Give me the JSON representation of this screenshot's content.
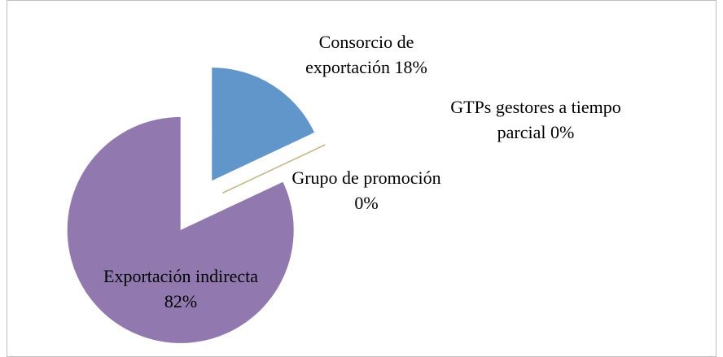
{
  "chart_data": {
    "type": "pie",
    "categories": [
      "Consorcio de exportación",
      "GTPs gestores a tiempo parcial",
      "Grupo de promoción",
      "Exportación indirecta"
    ],
    "values": [
      18,
      0,
      0,
      82
    ],
    "value_labels": [
      "18%",
      "0%",
      "0%",
      "82%"
    ],
    "colors": [
      "#6096c9",
      "#c9b98c",
      "#c9b98c",
      "#9179b0"
    ]
  }
}
